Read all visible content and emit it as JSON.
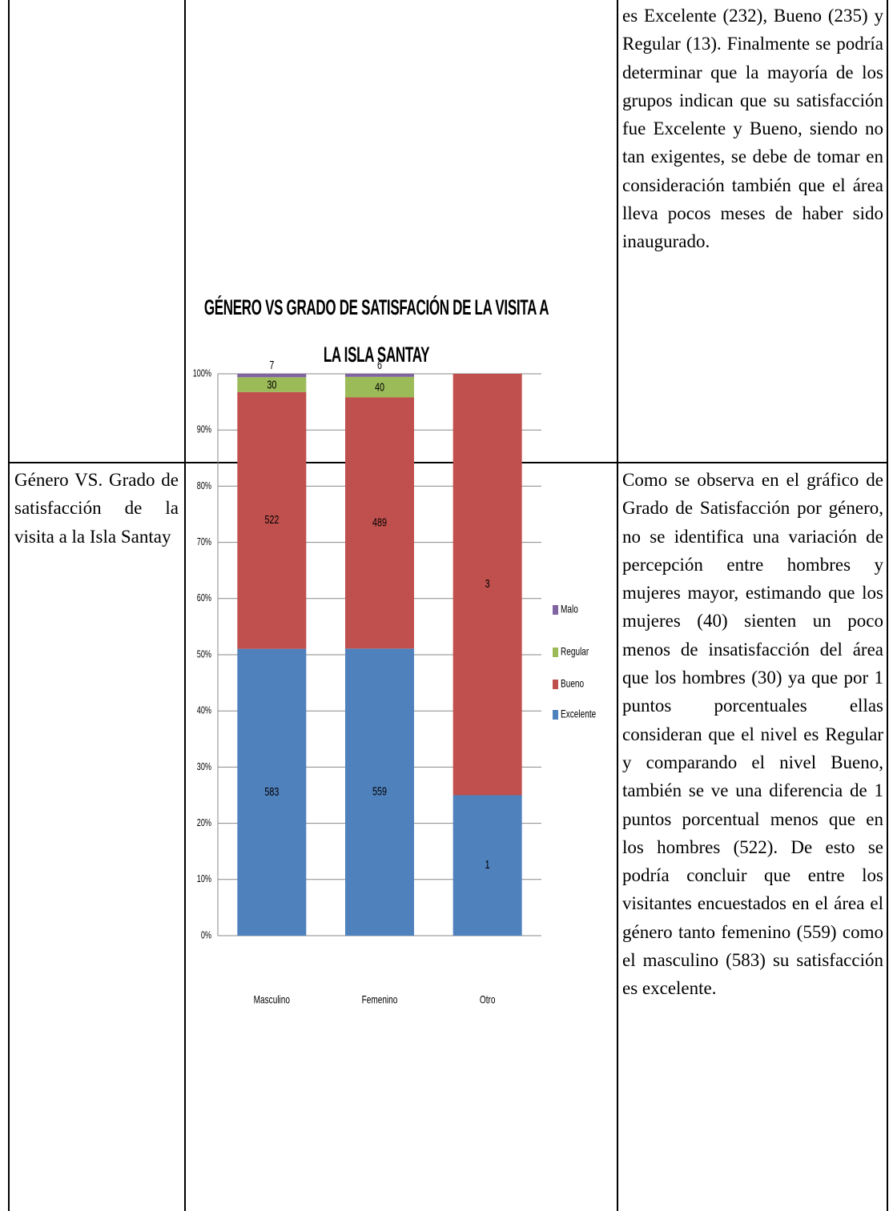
{
  "table": {
    "rows": [
      {
        "text": "es Excelente (232), Bueno (235) y Regular (13). Finalmente se podría determinar que la mayoría de los grupos indican que su satisfacción fue Excelente y Bueno, siendo no tan exigentes, se debe de tomar en consideración también que el área lleva pocos meses de haber sido inaugurado."
      },
      {
        "label": "Género VS. Grado de satisfacción de la visita a la Isla Santay",
        "text": "Como se observa en el gráfico de Grado de Satisfacción por género, no se identifica una variación de percepción entre hombres y mujeres mayor, estimando que los mujeres (40) sienten un poco menos de insatisfacción del área que los hombres (30) ya que por 1 puntos porcentuales ellas consideran que el nivel es Regular y comparando el nivel Bueno, también se ve una diferencia de 1 puntos porcentual menos que en los hombres (522). De esto se podría concluir que entre los visitantes encuestados en el área el género tanto femenino (559) como el masculino (583) su satisfacción es excelente."
      }
    ]
  },
  "chart_data": {
    "type": "stacked_bar_percent",
    "title": "GÉNERO VS  GRADO DE SATISFACIÓN DE LA VISITA A LA ISLA SANTAY",
    "categories": [
      "Masculino",
      "Femenino",
      "Otro"
    ],
    "series": [
      {
        "name": "Excelente",
        "color": "#4f81bd",
        "values": [
          583,
          559,
          1
        ]
      },
      {
        "name": "Bueno",
        "color": "#c0504d",
        "values": [
          522,
          489,
          3
        ]
      },
      {
        "name": "Regular",
        "color": "#9bbb59",
        "values": [
          30,
          40,
          null
        ]
      },
      {
        "name": "Malo",
        "color": "#8064a2",
        "values": [
          7,
          6,
          null
        ]
      }
    ],
    "ylim": [
      0,
      100
    ],
    "yticks": [
      {
        "value": 0,
        "label": "0%"
      },
      {
        "value": 10,
        "label": "10%"
      },
      {
        "value": 20,
        "label": "20%"
      },
      {
        "value": 30,
        "label": "30%"
      },
      {
        "value": 40,
        "label": "40%"
      },
      {
        "value": 50,
        "label": "50%"
      },
      {
        "value": 60,
        "label": "60%"
      },
      {
        "value": 70,
        "label": "70%"
      },
      {
        "value": 80,
        "label": "80%"
      },
      {
        "value": 90,
        "label": "90%"
      },
      {
        "value": 100,
        "label": "100%"
      }
    ],
    "grid": true,
    "legend": "right"
  }
}
